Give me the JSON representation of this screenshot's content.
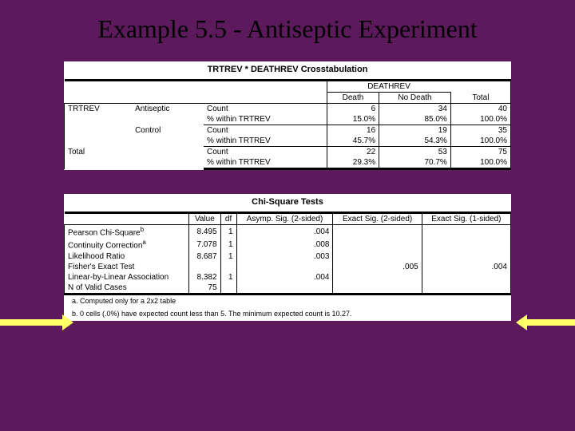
{
  "title": "Example 5.5 - Antiseptic Experiment",
  "crosstab": {
    "title": "TRTREV * DEATHREV Crosstabulation",
    "colgroup": "DEATHREV",
    "cols": [
      "Death",
      "No Death",
      "Total"
    ],
    "rowvar": "TRTREV",
    "groups": [
      {
        "label": "Antiseptic",
        "rows": [
          {
            "stat": "Count",
            "vals": [
              "6",
              "34",
              "40"
            ]
          },
          {
            "stat": "% within TRTREV",
            "vals": [
              "15.0%",
              "85.0%",
              "100.0%"
            ]
          }
        ]
      },
      {
        "label": "Control",
        "rows": [
          {
            "stat": "Count",
            "vals": [
              "16",
              "19",
              "35"
            ]
          },
          {
            "stat": "% within TRTREV",
            "vals": [
              "45.7%",
              "54.3%",
              "100.0%"
            ]
          }
        ]
      }
    ],
    "total": {
      "label": "Total",
      "rows": [
        {
          "stat": "Count",
          "vals": [
            "22",
            "53",
            "75"
          ]
        },
        {
          "stat": "% within TRTREV",
          "vals": [
            "29.3%",
            "70.7%",
            "100.0%"
          ]
        }
      ]
    }
  },
  "chisq": {
    "title": "Chi-Square Tests",
    "cols": [
      "Value",
      "df",
      "Asymp. Sig. (2-sided)",
      "Exact Sig. (2-sided)",
      "Exact Sig. (1-sided)"
    ],
    "rows": [
      {
        "label": "Pearson Chi-Square",
        "vals": [
          "8.495",
          "1",
          ".004",
          "",
          ""
        ],
        "sup": "b"
      },
      {
        "label": "Continuity Correction",
        "vals": [
          "7.078",
          "1",
          ".008",
          "",
          ""
        ],
        "sup": "a"
      },
      {
        "label": "Likelihood Ratio",
        "vals": [
          "8.687",
          "1",
          ".003",
          "",
          ""
        ]
      },
      {
        "label": "Fisher's Exact Test",
        "vals": [
          "",
          "",
          "",
          ".005",
          ".004"
        ]
      },
      {
        "label": "Linear-by-Linear Association",
        "vals": [
          "8.382",
          "1",
          ".004",
          "",
          ""
        ]
      },
      {
        "label": "N of Valid Cases",
        "vals": [
          "75",
          "",
          "",
          "",
          ""
        ]
      }
    ],
    "footnotes": [
      {
        "mark": "a.",
        "text": "Computed only for a 2x2 table"
      },
      {
        "mark": "b.",
        "text": "0 cells (.0%) have expected count less than 5. The minimum expected count is 10.27."
      }
    ]
  }
}
